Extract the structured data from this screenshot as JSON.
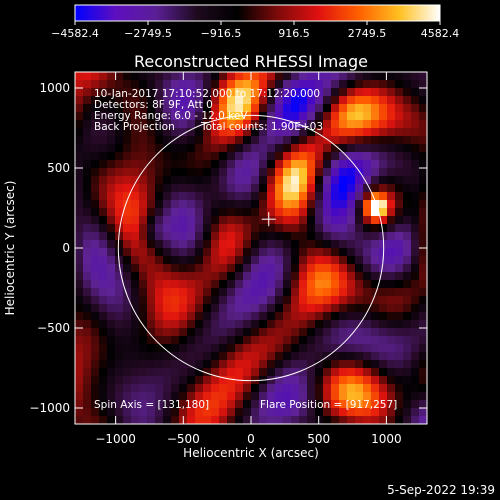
{
  "chart_data": {
    "type": "heatmap",
    "title": "Reconstructed RHESSI Image",
    "xlabel": "Heliocentric X (arcsec)",
    "ylabel": "Heliocentric Y (arcsec)",
    "xlim": [
      -1300,
      1300
    ],
    "ylim": [
      -1100,
      1100
    ],
    "xticks": [
      -1000,
      -500,
      0,
      500,
      1000
    ],
    "yticks": [
      -1000,
      -500,
      0,
      500,
      1000
    ],
    "xtick_labels": [
      "−1000",
      "−500",
      "0",
      "500",
      "1000"
    ],
    "ytick_labels": [
      "−1000",
      "−500",
      "0",
      "500",
      "1000"
    ],
    "colorbar": {
      "min": -4582.4,
      "max": 4582.4,
      "tick_values": [
        -4582.4,
        -2749.5,
        -916.5,
        916.5,
        2749.5,
        4582.4
      ],
      "tick_labels": [
        "−4582.4",
        "−2749.5",
        "−916.5",
        "916.5",
        "2749.5",
        "4582.4"
      ],
      "colors": [
        "#0000ff",
        "#5e0fbf",
        "#5a1f96",
        "#1e0a1e",
        "#000000",
        "#7f0a0a",
        "#e01010",
        "#ff6000",
        "#ffc020",
        "#ffffff"
      ]
    },
    "annotations": [
      "10-Jan-2017 17:10:52.000 to 17:12:20.000",
      "Detectors: 8F 9F, Att 0",
      "Energy Range: 6.0 - 12.0 keV",
      "Back Projection",
      "Total counts: 1.90E+03"
    ],
    "spin_axis_label": "Spin Axis = [131,180]",
    "flare_position_label": "Flare Position = [917,257]",
    "spin_axis": [
      131,
      180
    ],
    "flare_position": [
      917,
      257
    ],
    "solar_limb_radius": 980,
    "limb_center": [
      0,
      0
    ],
    "grid": false,
    "legend": "none"
  },
  "footer_date": "5-Sep-2022 19:39"
}
